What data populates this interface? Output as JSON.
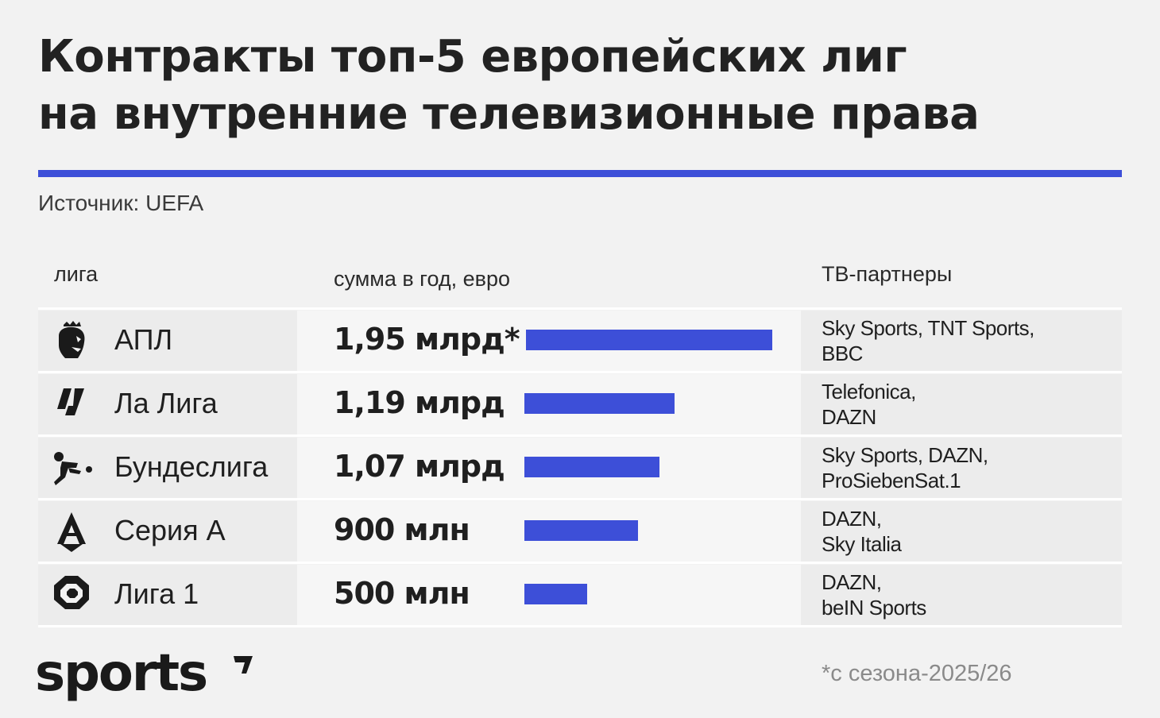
{
  "title_lines": [
    "Контракты топ-5 европейских лиг",
    "на внутренние телевизионные права"
  ],
  "source": "Источник: UEFA",
  "headers": {
    "league": "лига",
    "amount": "сумма в год, евро",
    "partners": "ТВ-партнеры"
  },
  "accent_color": "#3d4fd8",
  "rows": [
    {
      "league": "АПЛ",
      "icon": "premier-league-lion-icon",
      "amount_label": "1,95 млрд*",
      "partners": [
        "Sky Sports, TNT Sports,",
        "BBC"
      ]
    },
    {
      "league": "Ла Лига",
      "icon": "laliga-icon",
      "amount_label": "1,19 млрд",
      "partners": [
        "Telefonica,",
        "DAZN"
      ]
    },
    {
      "league": "Бундеслига",
      "icon": "bundesliga-player-icon",
      "amount_label": "1,07 млрд",
      "partners": [
        "Sky Sports, DAZN,",
        "ProSiebenSat.1"
      ]
    },
    {
      "league": "Серия А",
      "icon": "serie-a-icon",
      "amount_label": "900 млн",
      "partners": [
        "DAZN,",
        "Sky Italia"
      ]
    },
    {
      "league": "Лига 1",
      "icon": "ligue-1-icon",
      "amount_label": "500 млн",
      "partners": [
        "DAZN,",
        "beIN Sports"
      ]
    }
  ],
  "chart_data": {
    "type": "bar",
    "orientation": "horizontal",
    "categories": [
      "АПЛ",
      "Ла Лига",
      "Бундеслига",
      "Серия А",
      "Лига 1"
    ],
    "values": [
      1950,
      1190,
      1070,
      900,
      500
    ],
    "value_unit": "млн евро",
    "data_labels": [
      "1,95 млрд*",
      "1,19 млрд",
      "1,07 млрд",
      "900 млн",
      "500 млн"
    ]
  },
  "brand": "sports",
  "footnote": "*с сезона-2025/26"
}
